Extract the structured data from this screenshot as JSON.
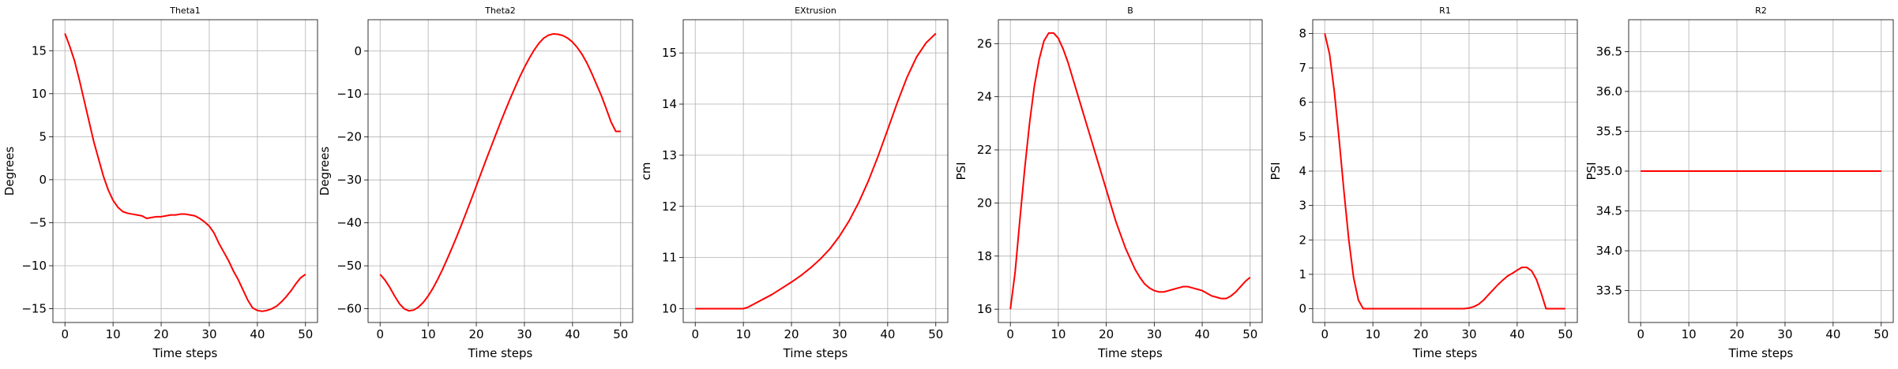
{
  "chart_data": [
    {
      "type": "line",
      "title": "Theta1",
      "xlabel": "Time steps",
      "ylabel": "Degrees",
      "xlim": [
        -2.5,
        52.5
      ],
      "ylim": [
        -16.6,
        18.6
      ],
      "xticks": [
        0,
        10,
        20,
        30,
        40,
        50
      ],
      "yticks": [
        -15,
        -10,
        -5,
        0,
        5,
        10,
        15
      ],
      "grid": true,
      "color": "#ff0000",
      "x": [
        0,
        1,
        2,
        3,
        4,
        5,
        6,
        7,
        8,
        9,
        10,
        11,
        12,
        13,
        14,
        15,
        16,
        17,
        18,
        19,
        20,
        21,
        22,
        23,
        24,
        25,
        26,
        27,
        28,
        29,
        30,
        31,
        32,
        33,
        34,
        35,
        36,
        37,
        38,
        39,
        40,
        41,
        42,
        43,
        44,
        45,
        46,
        47,
        48,
        49,
        50
      ],
      "y": [
        17,
        15.5,
        13.8,
        11.6,
        9.2,
        6.8,
        4.4,
        2.4,
        0.4,
        -1.2,
        -2.4,
        -3.2,
        -3.7,
        -3.9,
        -4.0,
        -4.1,
        -4.2,
        -4.5,
        -4.4,
        -4.3,
        -4.3,
        -4.2,
        -4.1,
        -4.1,
        -4.0,
        -4.0,
        -4.1,
        -4.2,
        -4.5,
        -4.9,
        -5.4,
        -6.2,
        -7.4,
        -8.4,
        -9.4,
        -10.6,
        -11.6,
        -12.8,
        -14.0,
        -14.9,
        -15.2,
        -15.3,
        -15.2,
        -15.0,
        -14.7,
        -14.2,
        -13.6,
        -12.9,
        -12.1,
        -11.4,
        -11.0
      ]
    },
    {
      "type": "line",
      "title": "Theta2",
      "xlabel": "Time steps",
      "ylabel": "Degrees",
      "xlim": [
        -2.5,
        52.5
      ],
      "ylim": [
        -63.2,
        7.3
      ],
      "xticks": [
        0,
        10,
        20,
        30,
        40,
        50
      ],
      "yticks": [
        -60,
        -50,
        -40,
        -30,
        -20,
        -10,
        0
      ],
      "grid": true,
      "color": "#ff0000",
      "x": [
        0,
        1,
        2,
        3,
        4,
        5,
        6,
        7,
        8,
        9,
        10,
        11,
        12,
        13,
        14,
        15,
        16,
        17,
        18,
        19,
        20,
        21,
        22,
        23,
        24,
        25,
        26,
        27,
        28,
        29,
        30,
        31,
        32,
        33,
        34,
        35,
        36,
        37,
        38,
        39,
        40,
        41,
        42,
        43,
        44,
        45,
        46,
        47,
        48,
        49,
        50
      ],
      "y": [
        -52,
        -53.3,
        -55,
        -57,
        -58.8,
        -60,
        -60.5,
        -60.3,
        -59.6,
        -58.5,
        -57,
        -55.2,
        -53.1,
        -50.8,
        -48.3,
        -45.7,
        -43,
        -40.2,
        -37.3,
        -34.4,
        -31.4,
        -28.4,
        -25.4,
        -22.5,
        -19.6,
        -16.7,
        -13.9,
        -11.2,
        -8.6,
        -6.1,
        -3.8,
        -1.7,
        0.2,
        1.8,
        3,
        3.7,
        4,
        3.9,
        3.6,
        3,
        2.1,
        0.8,
        -0.8,
        -2.8,
        -5.2,
        -7.8,
        -10.4,
        -13.4,
        -16.5,
        -18.7,
        -18.7
      ]
    },
    {
      "type": "line",
      "title": "EXtrusion",
      "xlabel": "Time steps",
      "ylabel": "cm",
      "xlim": [
        -2.5,
        52.5
      ],
      "ylim": [
        9.73,
        15.65
      ],
      "xticks": [
        0,
        10,
        20,
        30,
        40,
        50
      ],
      "yticks": [
        10,
        11,
        12,
        13,
        14,
        15
      ],
      "grid": true,
      "color": "#ff0000",
      "x": [
        0,
        2,
        4,
        6,
        8,
        10,
        11,
        12,
        14,
        16,
        18,
        20,
        22,
        24,
        26,
        28,
        30,
        32,
        34,
        36,
        38,
        40,
        42,
        44,
        46,
        48,
        50
      ],
      "y": [
        10,
        10,
        10,
        10,
        10,
        10,
        10.03,
        10.08,
        10.18,
        10.28,
        10.4,
        10.52,
        10.65,
        10.8,
        10.97,
        11.17,
        11.42,
        11.72,
        12.08,
        12.5,
        12.98,
        13.5,
        14.03,
        14.52,
        14.92,
        15.2,
        15.38
      ]
    },
    {
      "type": "line",
      "title": "B",
      "xlabel": "Time steps",
      "ylabel": "PSI",
      "xlim": [
        -2.5,
        52.5
      ],
      "ylim": [
        15.5,
        26.9
      ],
      "xticks": [
        0,
        10,
        20,
        30,
        40,
        50
      ],
      "yticks": [
        16,
        18,
        20,
        22,
        24,
        26
      ],
      "grid": true,
      "color": "#ff0000",
      "x": [
        0,
        1,
        2,
        3,
        4,
        5,
        6,
        7,
        8,
        9,
        10,
        11,
        12,
        13,
        14,
        15,
        16,
        17,
        18,
        19,
        20,
        21,
        22,
        23,
        24,
        25,
        26,
        27,
        28,
        29,
        30,
        31,
        32,
        33,
        34,
        35,
        36,
        37,
        38,
        39,
        40,
        41,
        42,
        43,
        44,
        45,
        46,
        47,
        48,
        49,
        50
      ],
      "y": [
        16,
        17.4,
        19.4,
        21.3,
        23.0,
        24.4,
        25.4,
        26.1,
        26.4,
        26.4,
        26.2,
        25.8,
        25.3,
        24.7,
        24.1,
        23.5,
        22.9,
        22.3,
        21.7,
        21.1,
        20.5,
        19.9,
        19.3,
        18.8,
        18.3,
        17.9,
        17.5,
        17.2,
        16.95,
        16.8,
        16.7,
        16.65,
        16.65,
        16.7,
        16.75,
        16.8,
        16.85,
        16.85,
        16.8,
        16.75,
        16.7,
        16.6,
        16.5,
        16.45,
        16.4,
        16.4,
        16.5,
        16.65,
        16.85,
        17.05,
        17.2
      ]
    },
    {
      "type": "line",
      "title": "R1",
      "xlabel": "Time steps",
      "ylabel": "PSI",
      "xlim": [
        -2.5,
        52.5
      ],
      "ylim": [
        -0.4,
        8.4
      ],
      "xticks": [
        0,
        10,
        20,
        30,
        40,
        50
      ],
      "yticks": [
        0,
        1,
        2,
        3,
        4,
        5,
        6,
        7,
        8
      ],
      "grid": true,
      "color": "#ff0000",
      "x": [
        0,
        1,
        2,
        3,
        4,
        5,
        6,
        7,
        8,
        10,
        15,
        20,
        25,
        29,
        30,
        31,
        32,
        33,
        34,
        35,
        36,
        37,
        38,
        39,
        40,
        41,
        42,
        43,
        44,
        45,
        46,
        47,
        48,
        49,
        50
      ],
      "y": [
        8,
        7.4,
        6.3,
        4.9,
        3.4,
        2.0,
        0.9,
        0.25,
        0,
        0,
        0,
        0,
        0,
        0,
        0.02,
        0.06,
        0.13,
        0.25,
        0.4,
        0.55,
        0.7,
        0.83,
        0.95,
        1.03,
        1.12,
        1.2,
        1.2,
        1.1,
        0.85,
        0.45,
        0,
        0,
        0,
        0,
        0
      ]
    },
    {
      "type": "line",
      "title": "R2",
      "xlabel": "Time steps",
      "ylabel": "PSI",
      "xlim": [
        -2.5,
        52.5
      ],
      "ylim": [
        33.1,
        36.9
      ],
      "xticks": [
        0,
        10,
        20,
        30,
        40,
        50
      ],
      "yticks": [
        33.5,
        34.0,
        34.5,
        35.0,
        35.5,
        36.0,
        36.5
      ],
      "ytick_labels": [
        "33.5",
        "34.0",
        "34.5",
        "35.0",
        "35.5",
        "36.0",
        "36.5"
      ],
      "grid": true,
      "color": "#ff0000",
      "x": [
        0,
        50
      ],
      "y": [
        35,
        35
      ]
    }
  ]
}
